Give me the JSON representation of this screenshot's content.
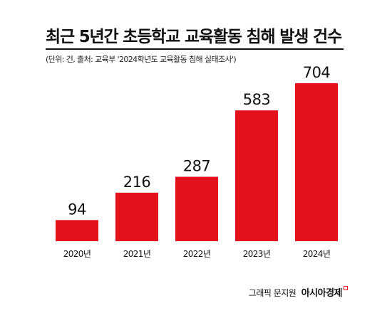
{
  "header": {
    "title": "최근 5년간 초등학교 교육활동 침해 발생 건수",
    "subtitle": "(단위: 건, 출처: 교육부 '2024학년도 교육활동 침해 실태조사')"
  },
  "footer": {
    "credit": "그래픽 문지원",
    "brand": "아시아경제"
  },
  "colors": {
    "bar": "#e3111b",
    "text": "#111111"
  },
  "chart_data": {
    "type": "bar",
    "title": "최근 5년간 초등학교 교육활동 침해 발생 건수",
    "categories": [
      "2020년",
      "2021년",
      "2022년",
      "2023년",
      "2024년"
    ],
    "values": [
      94,
      216,
      287,
      583,
      704
    ],
    "data_labels": [
      "94",
      "216",
      "287",
      "583",
      "704"
    ],
    "unit": "건",
    "ylim": [
      0,
      704
    ],
    "grid": false,
    "legend": "none"
  }
}
